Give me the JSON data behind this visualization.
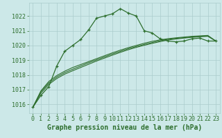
{
  "background_color": "#cce8e8",
  "grid_color": "#aacccc",
  "line_color": "#2d6e2d",
  "marker_color": "#2d6e2d",
  "title": "Graphe pression niveau de la mer (hPa)",
  "xlim": [
    -0.5,
    23.5
  ],
  "ylim": [
    1015.4,
    1022.9
  ],
  "yticks": [
    1016,
    1017,
    1018,
    1019,
    1020,
    1021,
    1022
  ],
  "xticks": [
    0,
    1,
    2,
    3,
    4,
    5,
    6,
    7,
    8,
    9,
    10,
    11,
    12,
    13,
    14,
    15,
    16,
    17,
    18,
    19,
    20,
    21,
    22,
    23
  ],
  "series": [
    {
      "x": [
        0,
        1,
        2,
        3,
        4,
        5,
        6,
        7,
        8,
        9,
        10,
        11,
        12,
        13,
        14,
        15,
        16,
        17,
        18,
        19,
        20,
        21,
        22,
        23
      ],
      "y": [
        1015.8,
        1016.6,
        1017.2,
        1018.6,
        1019.6,
        1020.0,
        1020.4,
        1021.05,
        1021.85,
        1022.0,
        1022.15,
        1022.5,
        1022.2,
        1022.0,
        1021.0,
        1020.85,
        1020.45,
        1020.3,
        1020.25,
        1020.3,
        1020.45,
        1020.5,
        1020.3,
        1020.3
      ],
      "with_markers": true,
      "linewidth": 0.9
    },
    {
      "x": [
        0,
        1,
        2,
        3,
        4,
        5,
        6,
        7,
        8,
        9,
        10,
        11,
        12,
        13,
        14,
        15,
        16,
        17,
        18,
        19,
        20,
        21,
        22,
        23
      ],
      "y": [
        1015.8,
        1016.9,
        1017.55,
        1017.95,
        1018.25,
        1018.5,
        1018.7,
        1018.9,
        1019.1,
        1019.3,
        1019.5,
        1019.68,
        1019.85,
        1020.0,
        1020.15,
        1020.28,
        1020.38,
        1020.46,
        1020.52,
        1020.57,
        1020.62,
        1020.65,
        1020.68,
        1020.3
      ],
      "with_markers": false,
      "linewidth": 0.8
    },
    {
      "x": [
        0,
        1,
        2,
        3,
        4,
        5,
        6,
        7,
        8,
        9,
        10,
        11,
        12,
        13,
        14,
        15,
        16,
        17,
        18,
        19,
        20,
        21,
        22,
        23
      ],
      "y": [
        1015.8,
        1016.85,
        1017.45,
        1017.85,
        1018.15,
        1018.38,
        1018.6,
        1018.82,
        1019.02,
        1019.22,
        1019.42,
        1019.6,
        1019.78,
        1019.93,
        1020.07,
        1020.2,
        1020.32,
        1020.42,
        1020.48,
        1020.53,
        1020.58,
        1020.62,
        1020.65,
        1020.3
      ],
      "with_markers": false,
      "linewidth": 0.8
    },
    {
      "x": [
        0,
        1,
        2,
        3,
        4,
        5,
        6,
        7,
        8,
        9,
        10,
        11,
        12,
        13,
        14,
        15,
        16,
        17,
        18,
        19,
        20,
        21,
        22,
        23
      ],
      "y": [
        1015.8,
        1016.75,
        1017.35,
        1017.75,
        1018.05,
        1018.28,
        1018.5,
        1018.72,
        1018.94,
        1019.14,
        1019.34,
        1019.53,
        1019.71,
        1019.87,
        1020.01,
        1020.14,
        1020.26,
        1020.37,
        1020.44,
        1020.5,
        1020.55,
        1020.59,
        1020.62,
        1020.3
      ],
      "with_markers": false,
      "linewidth": 0.8
    }
  ],
  "title_fontsize": 7,
  "tick_fontsize": 6,
  "title_color": "#2d6e2d",
  "tick_color": "#2d6e2d",
  "tick_font": "monospace"
}
